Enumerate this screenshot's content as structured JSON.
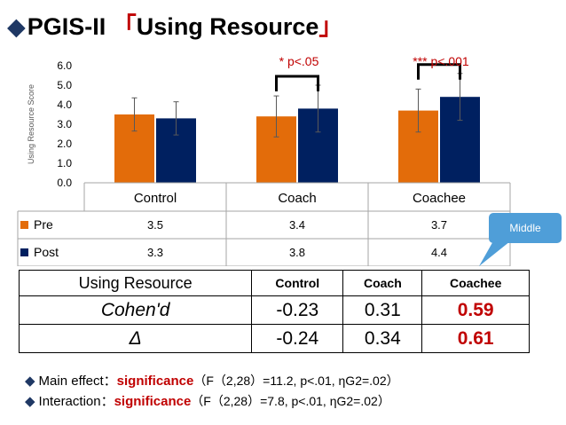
{
  "title": {
    "diamond": "◆",
    "main": "PGIS-II ",
    "open_bracket": "「",
    "highlight": "Using Resource",
    "close_bracket": "」"
  },
  "chart_data": {
    "type": "bar",
    "ylabel": "Using Resource Score",
    "ylim": [
      0,
      6
    ],
    "yticks": [
      "0.0",
      "1.0",
      "2.0",
      "3.0",
      "4.0",
      "5.0",
      "6.0"
    ],
    "categories": [
      "Control",
      "Coach",
      "Coachee"
    ],
    "series": [
      {
        "name": "Pre",
        "values": [
          3.5,
          3.4,
          3.7
        ],
        "labels": [
          "3.5",
          "3.4",
          "3.7"
        ],
        "errors": [
          0.85,
          1.05,
          1.1
        ],
        "color": "#e36c0a"
      },
      {
        "name": "Post",
        "values": [
          3.3,
          3.8,
          4.4
        ],
        "labels": [
          "3.3",
          "3.8",
          "4.4"
        ],
        "errors": [
          0.85,
          1.2,
          1.2
        ],
        "color": "#002060"
      }
    ],
    "significance": [
      {
        "category": "Coach",
        "label": "* p<.05"
      },
      {
        "category": "Coachee",
        "label": "*** p<.001"
      }
    ],
    "data_table": true
  },
  "callout": {
    "label": "Middle",
    "color": "#4f9ed8"
  },
  "effect_table": {
    "header": [
      "Using Resource",
      "Control",
      "Coach",
      "Coachee"
    ],
    "rows": [
      {
        "label": "Cohen'd",
        "values": [
          "-0.23",
          "0.31",
          "0.59"
        ]
      },
      {
        "label": "Δ",
        "values": [
          "-0.24",
          "0.34",
          "0.61"
        ]
      }
    ]
  },
  "notes": [
    {
      "bullet": "◆",
      "prefix": "Main effect：",
      "sig": "significance",
      "stat": "（F（2,28）=11.2, p<.01, ηG2=.02）"
    },
    {
      "bullet": "◆",
      "prefix": "Interaction：",
      "sig": "significance",
      "stat": "（F（2,28）=7.8, p<.01, ηG2=.02）"
    }
  ],
  "colors": {
    "pre": "#e36c0a",
    "post": "#002060",
    "accent": "#c00000",
    "title_diamond": "#1f3864"
  }
}
